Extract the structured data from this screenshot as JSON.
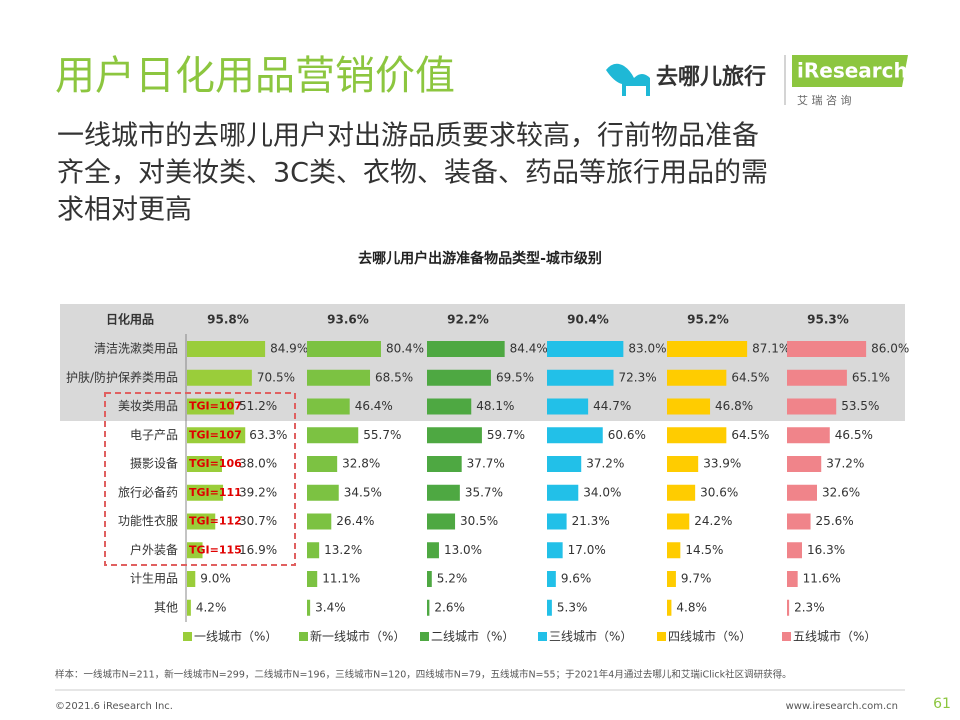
{
  "header": {
    "title": "用户日化用品营销价值",
    "subtitle_lines": [
      "一线城市的去哪儿用户对出游品质要求较高，行前物品准备",
      "齐全，对美妆类、3C类、衣物、装备、药品等旅行用品的需",
      "求相对更高"
    ],
    "logo_qunar": "去哪儿旅行",
    "logo_iresearch": "iResearch",
    "logo_iresearch_cn": "艾 瑞 咨 询"
  },
  "chart_data": {
    "type": "bar",
    "orientation": "horizontal",
    "title": "去哪儿用户出游准备物品类型-城市级别",
    "header_category": "日化用品",
    "categories": [
      "清洁洗漱类用品",
      "护肤/防护保养类用品",
      "美妆类用品",
      "电子产品",
      "摄影设备",
      "旅行必备药",
      "功能性衣服",
      "户外装备",
      "计生用品",
      "其他"
    ],
    "xlim": [
      0,
      100
    ],
    "series": [
      {
        "name": "一线城市（%）",
        "color": "#9acd3a",
        "total": "95.8%",
        "values": [
          84.9,
          70.5,
          51.2,
          63.3,
          38.0,
          39.2,
          30.7,
          16.9,
          9.0,
          4.2
        ],
        "value_labels": [
          "84.9%",
          "70.5%",
          "51.2%",
          "63.3%",
          "38.0%",
          "39.2%",
          "30.7%",
          "16.9%",
          "9.0%",
          "4.2%"
        ],
        "tgi_labels": [
          null,
          null,
          "TGI=107",
          "TGI=107",
          "TGI=106",
          "TGI=111",
          "TGI=112",
          "TGI=115",
          null,
          null
        ]
      },
      {
        "name": "新一线城市（%）",
        "color": "#7cc242",
        "total": "93.6%",
        "values": [
          80.4,
          68.5,
          46.4,
          55.7,
          32.8,
          34.5,
          26.4,
          13.2,
          11.1,
          3.4
        ],
        "value_labels": [
          "80.4%",
          "68.5%",
          "46.4%",
          "55.7%",
          "32.8%",
          "34.5%",
          "26.4%",
          "13.2%",
          "11.1%",
          "3.4%"
        ]
      },
      {
        "name": "二线城市（%）",
        "color": "#4ea842",
        "total": "92.2%",
        "values": [
          84.4,
          69.5,
          48.1,
          59.7,
          37.7,
          35.7,
          30.5,
          13.0,
          5.2,
          2.6
        ],
        "value_labels": [
          "84.4%",
          "69.5%",
          "48.1%",
          "59.7%",
          "37.7%",
          "35.7%",
          "30.5%",
          "13.0%",
          "5.2%",
          "2.6%"
        ]
      },
      {
        "name": "三线城市（%）",
        "color": "#22c0e8",
        "total": "90.4%",
        "values": [
          83.0,
          72.3,
          44.7,
          60.6,
          37.2,
          34.0,
          21.3,
          17.0,
          9.6,
          5.3
        ],
        "value_labels": [
          "83.0%",
          "72.3%",
          "44.7%",
          "60.6%",
          "37.2%",
          "34.0%",
          "21.3%",
          "17.0%",
          "9.6%",
          "5.3%"
        ]
      },
      {
        "name": "四线城市（%）",
        "color": "#ffcc00",
        "total": "95.2%",
        "values": [
          87.1,
          64.5,
          46.8,
          64.5,
          33.9,
          30.6,
          24.2,
          14.5,
          9.7,
          4.8
        ],
        "value_labels": [
          "87.1%",
          "64.5%",
          "46.8%",
          "64.5%",
          "33.9%",
          "30.6%",
          "24.2%",
          "14.5%",
          "9.7%",
          "4.8%"
        ]
      },
      {
        "name": "五线城市（%）",
        "color": "#f0848a",
        "total": "95.3%",
        "values": [
          86.0,
          65.1,
          53.5,
          46.5,
          37.2,
          32.6,
          25.6,
          16.3,
          11.6,
          2.3
        ],
        "value_labels": [
          "86.0%",
          "65.1%",
          "53.5%",
          "46.5%",
          "37.2%",
          "32.6%",
          "25.6%",
          "16.3%",
          "11.6%",
          "2.3%"
        ]
      }
    ],
    "legend": "bottom"
  },
  "footer": {
    "note": "样本：一线城市N=211，新一线城市N=299，二线城市N=196，三线城市N=120，四线城市N=79，五线城市N=55；于2021年4月通过去哪儿和艾瑞iClick社区调研获得。",
    "copyright": "©2021.6 iResearch Inc.",
    "url": "www.iresearch.com.cn",
    "page": "61"
  }
}
